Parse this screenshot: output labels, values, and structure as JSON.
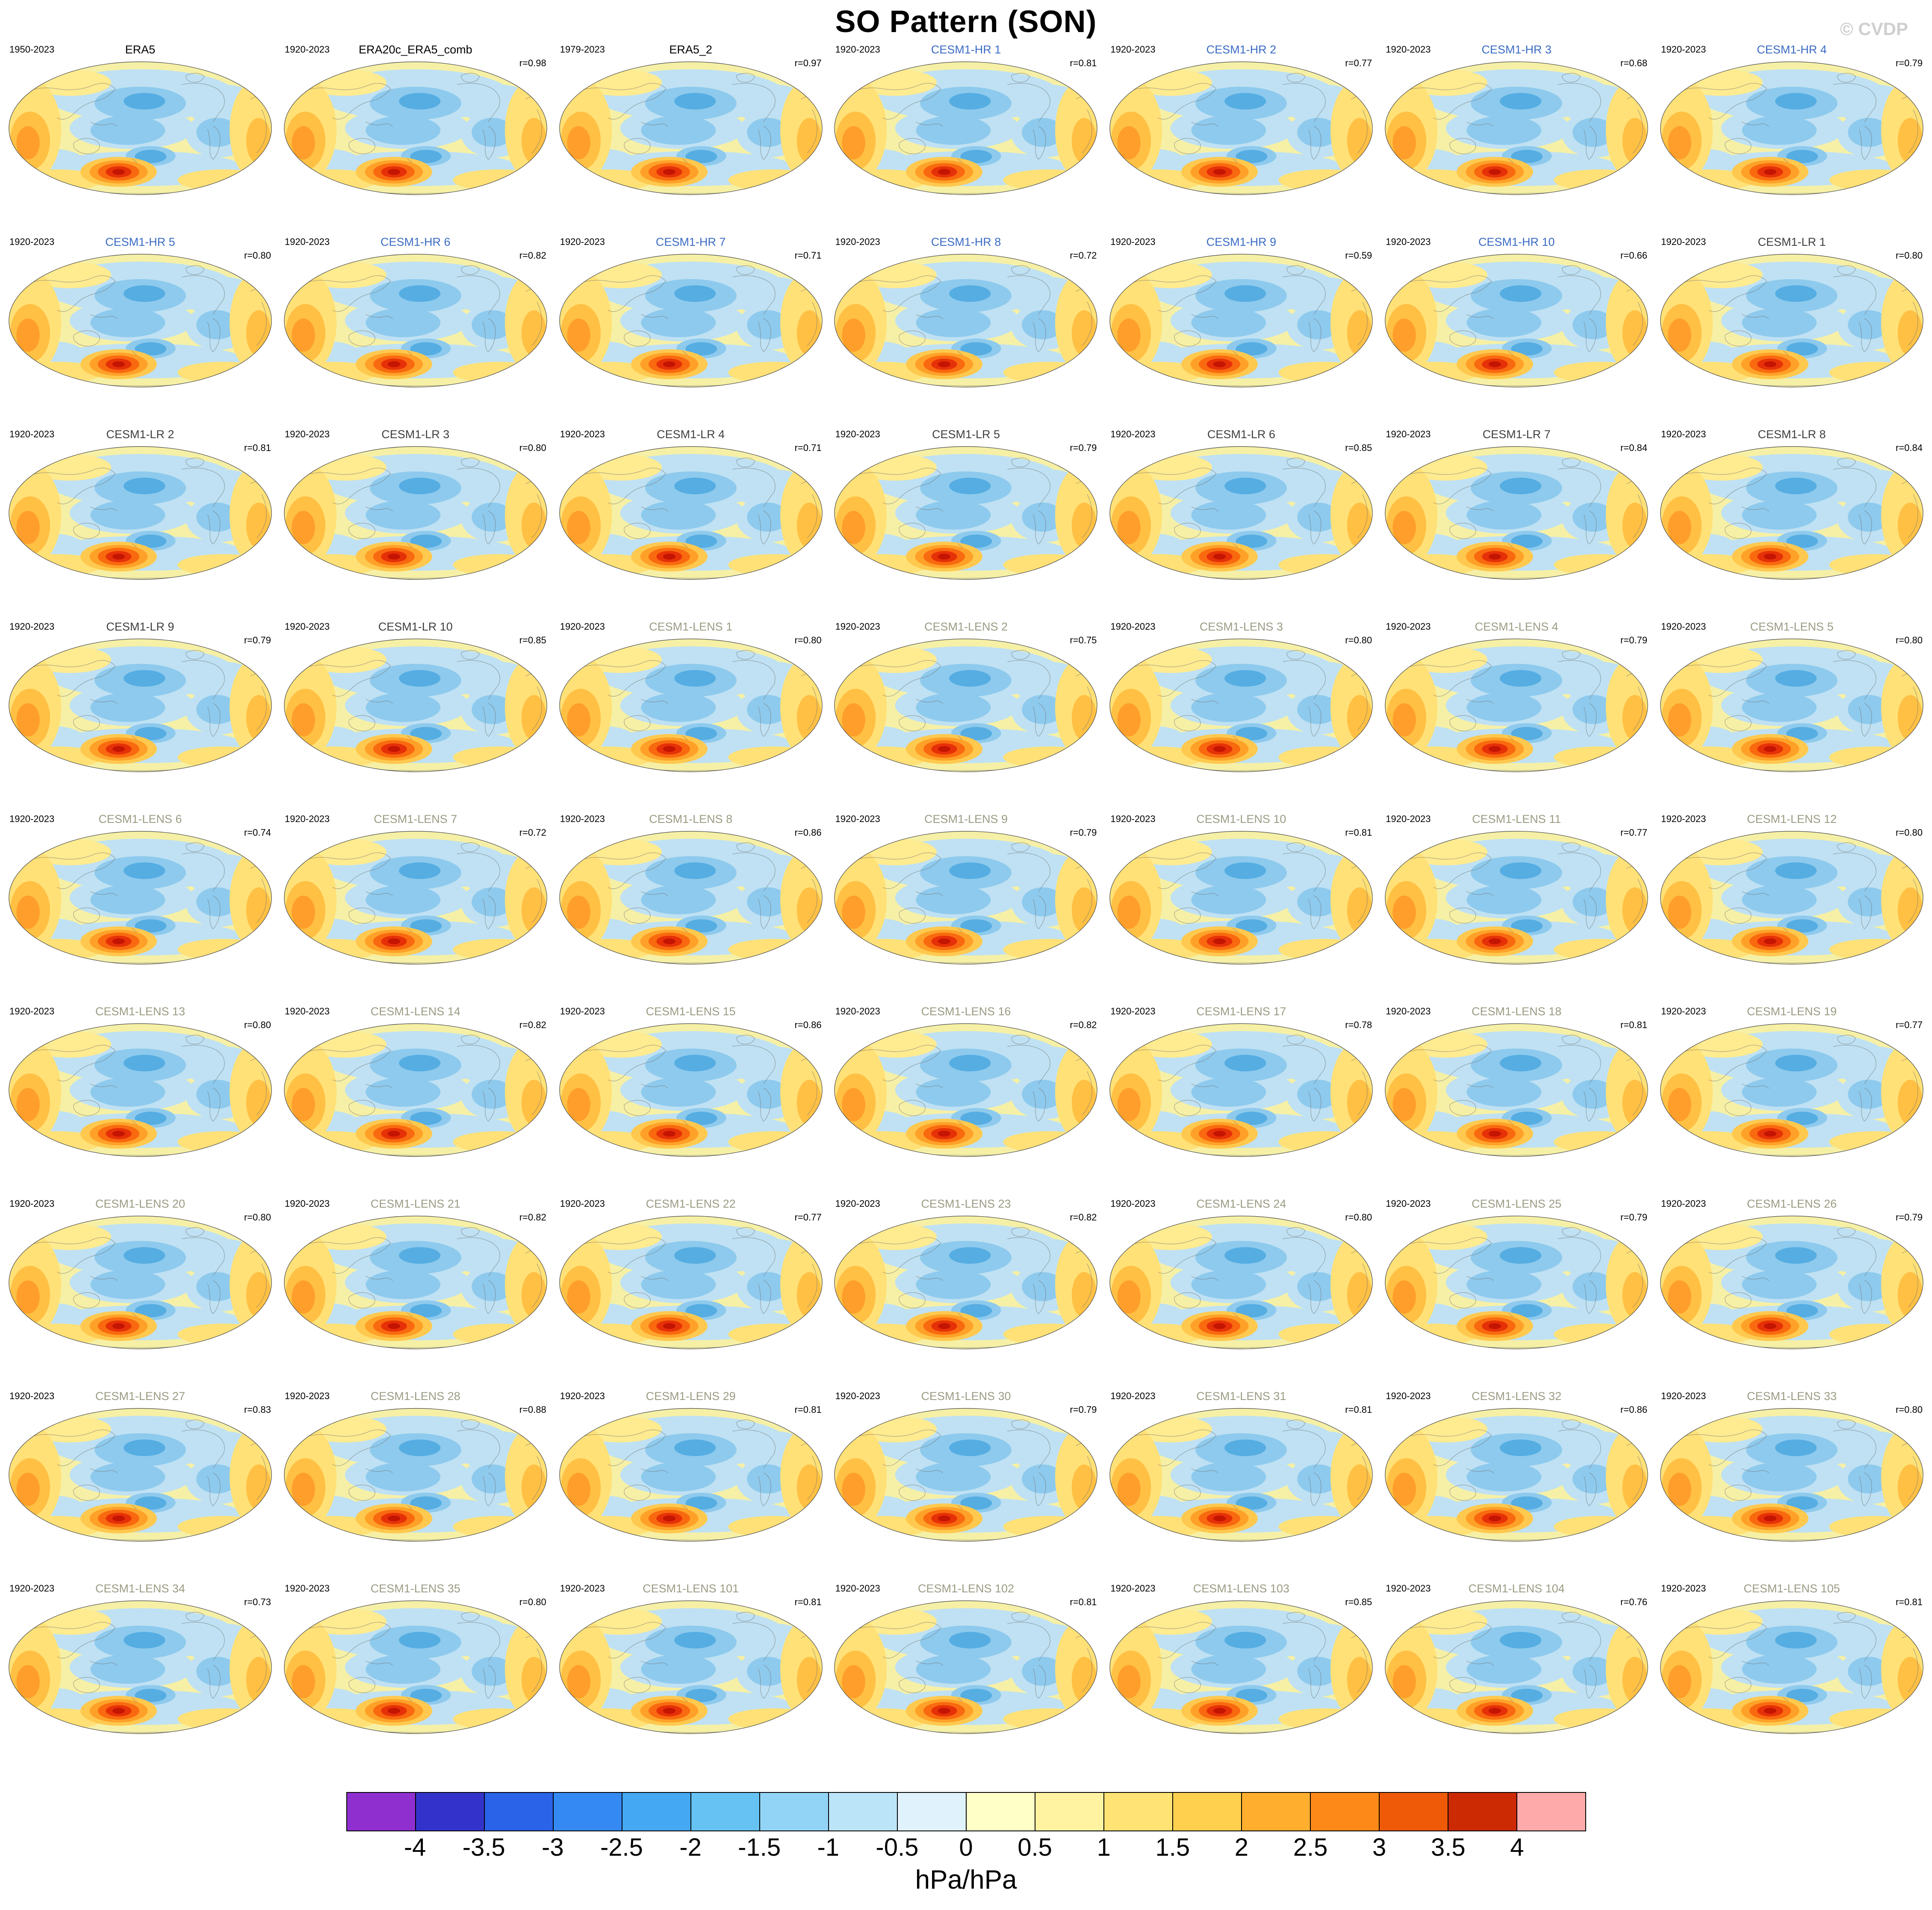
{
  "header": {
    "title": "SO Pattern (SON)",
    "watermark": "© CVDP"
  },
  "chart_data": {
    "type": "heatmap",
    "title": "SO Pattern (SON)",
    "description": "Grid of 63 global sea-level-pressure regression maps (Southern Oscillation pattern, SON season), each panel an oval world-map projection with filled contours; warm colors positive, cool colors negative; strong positive center in the southern mid-latitude Pacific.",
    "units_label": "hPa/hPa",
    "colorbar": {
      "tick_labels": [
        "-4",
        "-3.5",
        "-3",
        "-2.5",
        "-2",
        "-1.5",
        "-1",
        "-0.5",
        "0",
        "0.5",
        "1",
        "1.5",
        "2",
        "2.5",
        "3",
        "3.5",
        "4"
      ],
      "segment_colors": [
        "#8f2fd0",
        "#3333cc",
        "#2a62e8",
        "#3489f2",
        "#44a8f2",
        "#66c2f2",
        "#92d4f6",
        "#bce4f8",
        "#e0f2fb",
        "#ffffc8",
        "#fff3a2",
        "#ffe374",
        "#ffcf4e",
        "#ffae2e",
        "#fd8a18",
        "#ee5a08",
        "#cc2a03",
        "#ffaaaa"
      ]
    },
    "group_colors": {
      "era": "#000000",
      "hr": "#3a6bc4",
      "lr": "#3f3f3f",
      "lens": "#9b9b84"
    },
    "map_palette": {
      "base": "#f6f0a6",
      "light_blue": "#bfe1f3",
      "mid_blue": "#8ecaed",
      "deep_blue": "#55ade2",
      "pale_yellow": "#ffeb90",
      "yellow": "#ffe177",
      "gold": "#ffc044",
      "orange": "#ff9e2a",
      "blob_ring1": "#ffc94f",
      "blob_ring2": "#ffa128",
      "blob_ring3": "#f9690f",
      "blob_ring4": "#e63108",
      "blob_core": "#c41402",
      "coastline": "#6f6f6f",
      "outline": "#444444"
    },
    "panels": [
      {
        "name": "ERA5",
        "years": "1950-2023",
        "r": "",
        "group": "era"
      },
      {
        "name": "ERA20c_ERA5_comb",
        "years": "1920-2023",
        "r": "r=0.98",
        "group": "era"
      },
      {
        "name": "ERA5_2",
        "years": "1979-2023",
        "r": "r=0.97",
        "group": "era"
      },
      {
        "name": "CESM1-HR 1",
        "years": "1920-2023",
        "r": "r=0.81",
        "group": "hr"
      },
      {
        "name": "CESM1-HR 2",
        "years": "1920-2023",
        "r": "r=0.77",
        "group": "hr"
      },
      {
        "name": "CESM1-HR 3",
        "years": "1920-2023",
        "r": "r=0.68",
        "group": "hr"
      },
      {
        "name": "CESM1-HR 4",
        "years": "1920-2023",
        "r": "r=0.79",
        "group": "hr"
      },
      {
        "name": "CESM1-HR 5",
        "years": "1920-2023",
        "r": "r=0.80",
        "group": "hr"
      },
      {
        "name": "CESM1-HR 6",
        "years": "1920-2023",
        "r": "r=0.82",
        "group": "hr"
      },
      {
        "name": "CESM1-HR 7",
        "years": "1920-2023",
        "r": "r=0.71",
        "group": "hr"
      },
      {
        "name": "CESM1-HR 8",
        "years": "1920-2023",
        "r": "r=0.72",
        "group": "hr"
      },
      {
        "name": "CESM1-HR 9",
        "years": "1920-2023",
        "r": "r=0.59",
        "group": "hr"
      },
      {
        "name": "CESM1-HR 10",
        "years": "1920-2023",
        "r": "r=0.66",
        "group": "hr"
      },
      {
        "name": "CESM1-LR 1",
        "years": "1920-2023",
        "r": "r=0.80",
        "group": "lr"
      },
      {
        "name": "CESM1-LR 2",
        "years": "1920-2023",
        "r": "r=0.81",
        "group": "lr"
      },
      {
        "name": "CESM1-LR 3",
        "years": "1920-2023",
        "r": "r=0.80",
        "group": "lr"
      },
      {
        "name": "CESM1-LR 4",
        "years": "1920-2023",
        "r": "r=0.71",
        "group": "lr"
      },
      {
        "name": "CESM1-LR 5",
        "years": "1920-2023",
        "r": "r=0.79",
        "group": "lr"
      },
      {
        "name": "CESM1-LR 6",
        "years": "1920-2023",
        "r": "r=0.85",
        "group": "lr"
      },
      {
        "name": "CESM1-LR 7",
        "years": "1920-2023",
        "r": "r=0.84",
        "group": "lr"
      },
      {
        "name": "CESM1-LR 8",
        "years": "1920-2023",
        "r": "r=0.84",
        "group": "lr"
      },
      {
        "name": "CESM1-LR 9",
        "years": "1920-2023",
        "r": "r=0.79",
        "group": "lr"
      },
      {
        "name": "CESM1-LR 10",
        "years": "1920-2023",
        "r": "r=0.85",
        "group": "lr"
      },
      {
        "name": "CESM1-LENS 1",
        "years": "1920-2023",
        "r": "r=0.80",
        "group": "lens"
      },
      {
        "name": "CESM1-LENS 2",
        "years": "1920-2023",
        "r": "r=0.75",
        "group": "lens"
      },
      {
        "name": "CESM1-LENS 3",
        "years": "1920-2023",
        "r": "r=0.80",
        "group": "lens"
      },
      {
        "name": "CESM1-LENS 4",
        "years": "1920-2023",
        "r": "r=0.79",
        "group": "lens"
      },
      {
        "name": "CESM1-LENS 5",
        "years": "1920-2023",
        "r": "r=0.80",
        "group": "lens"
      },
      {
        "name": "CESM1-LENS 6",
        "years": "1920-2023",
        "r": "r=0.74",
        "group": "lens"
      },
      {
        "name": "CESM1-LENS 7",
        "years": "1920-2023",
        "r": "r=0.72",
        "group": "lens"
      },
      {
        "name": "CESM1-LENS 8",
        "years": "1920-2023",
        "r": "r=0.86",
        "group": "lens"
      },
      {
        "name": "CESM1-LENS 9",
        "years": "1920-2023",
        "r": "r=0.79",
        "group": "lens"
      },
      {
        "name": "CESM1-LENS 10",
        "years": "1920-2023",
        "r": "r=0.81",
        "group": "lens"
      },
      {
        "name": "CESM1-LENS 11",
        "years": "1920-2023",
        "r": "r=0.77",
        "group": "lens"
      },
      {
        "name": "CESM1-LENS 12",
        "years": "1920-2023",
        "r": "r=0.80",
        "group": "lens"
      },
      {
        "name": "CESM1-LENS 13",
        "years": "1920-2023",
        "r": "r=0.80",
        "group": "lens"
      },
      {
        "name": "CESM1-LENS 14",
        "years": "1920-2023",
        "r": "r=0.82",
        "group": "lens"
      },
      {
        "name": "CESM1-LENS 15",
        "years": "1920-2023",
        "r": "r=0.86",
        "group": "lens"
      },
      {
        "name": "CESM1-LENS 16",
        "years": "1920-2023",
        "r": "r=0.82",
        "group": "lens"
      },
      {
        "name": "CESM1-LENS 17",
        "years": "1920-2023",
        "r": "r=0.78",
        "group": "lens"
      },
      {
        "name": "CESM1-LENS 18",
        "years": "1920-2023",
        "r": "r=0.81",
        "group": "lens"
      },
      {
        "name": "CESM1-LENS 19",
        "years": "1920-2023",
        "r": "r=0.77",
        "group": "lens"
      },
      {
        "name": "CESM1-LENS 20",
        "years": "1920-2023",
        "r": "r=0.80",
        "group": "lens"
      },
      {
        "name": "CESM1-LENS 21",
        "years": "1920-2023",
        "r": "r=0.82",
        "group": "lens"
      },
      {
        "name": "CESM1-LENS 22",
        "years": "1920-2023",
        "r": "r=0.77",
        "group": "lens"
      },
      {
        "name": "CESM1-LENS 23",
        "years": "1920-2023",
        "r": "r=0.82",
        "group": "lens"
      },
      {
        "name": "CESM1-LENS 24",
        "years": "1920-2023",
        "r": "r=0.80",
        "group": "lens"
      },
      {
        "name": "CESM1-LENS 25",
        "years": "1920-2023",
        "r": "r=0.79",
        "group": "lens"
      },
      {
        "name": "CESM1-LENS 26",
        "years": "1920-2023",
        "r": "r=0.79",
        "group": "lens"
      },
      {
        "name": "CESM1-LENS 27",
        "years": "1920-2023",
        "r": "r=0.83",
        "group": "lens"
      },
      {
        "name": "CESM1-LENS 28",
        "years": "1920-2023",
        "r": "r=0.88",
        "group": "lens"
      },
      {
        "name": "CESM1-LENS 29",
        "years": "1920-2023",
        "r": "r=0.81",
        "group": "lens"
      },
      {
        "name": "CESM1-LENS 30",
        "years": "1920-2023",
        "r": "r=0.79",
        "group": "lens"
      },
      {
        "name": "CESM1-LENS 31",
        "years": "1920-2023",
        "r": "r=0.81",
        "group": "lens"
      },
      {
        "name": "CESM1-LENS 32",
        "years": "1920-2023",
        "r": "r=0.86",
        "group": "lens"
      },
      {
        "name": "CESM1-LENS 33",
        "years": "1920-2023",
        "r": "r=0.80",
        "group": "lens"
      },
      {
        "name": "CESM1-LENS 34",
        "years": "1920-2023",
        "r": "r=0.73",
        "group": "lens"
      },
      {
        "name": "CESM1-LENS 35",
        "years": "1920-2023",
        "r": "r=0.80",
        "group": "lens"
      },
      {
        "name": "CESM1-LENS 101",
        "years": "1920-2023",
        "r": "r=0.81",
        "group": "lens"
      },
      {
        "name": "CESM1-LENS 102",
        "years": "1920-2023",
        "r": "r=0.81",
        "group": "lens"
      },
      {
        "name": "CESM1-LENS 103",
        "years": "1920-2023",
        "r": "r=0.85",
        "group": "lens"
      },
      {
        "name": "CESM1-LENS 104",
        "years": "1920-2023",
        "r": "r=0.76",
        "group": "lens"
      },
      {
        "name": "CESM1-LENS 105",
        "years": "1920-2023",
        "r": "r=0.81",
        "group": "lens"
      }
    ]
  }
}
